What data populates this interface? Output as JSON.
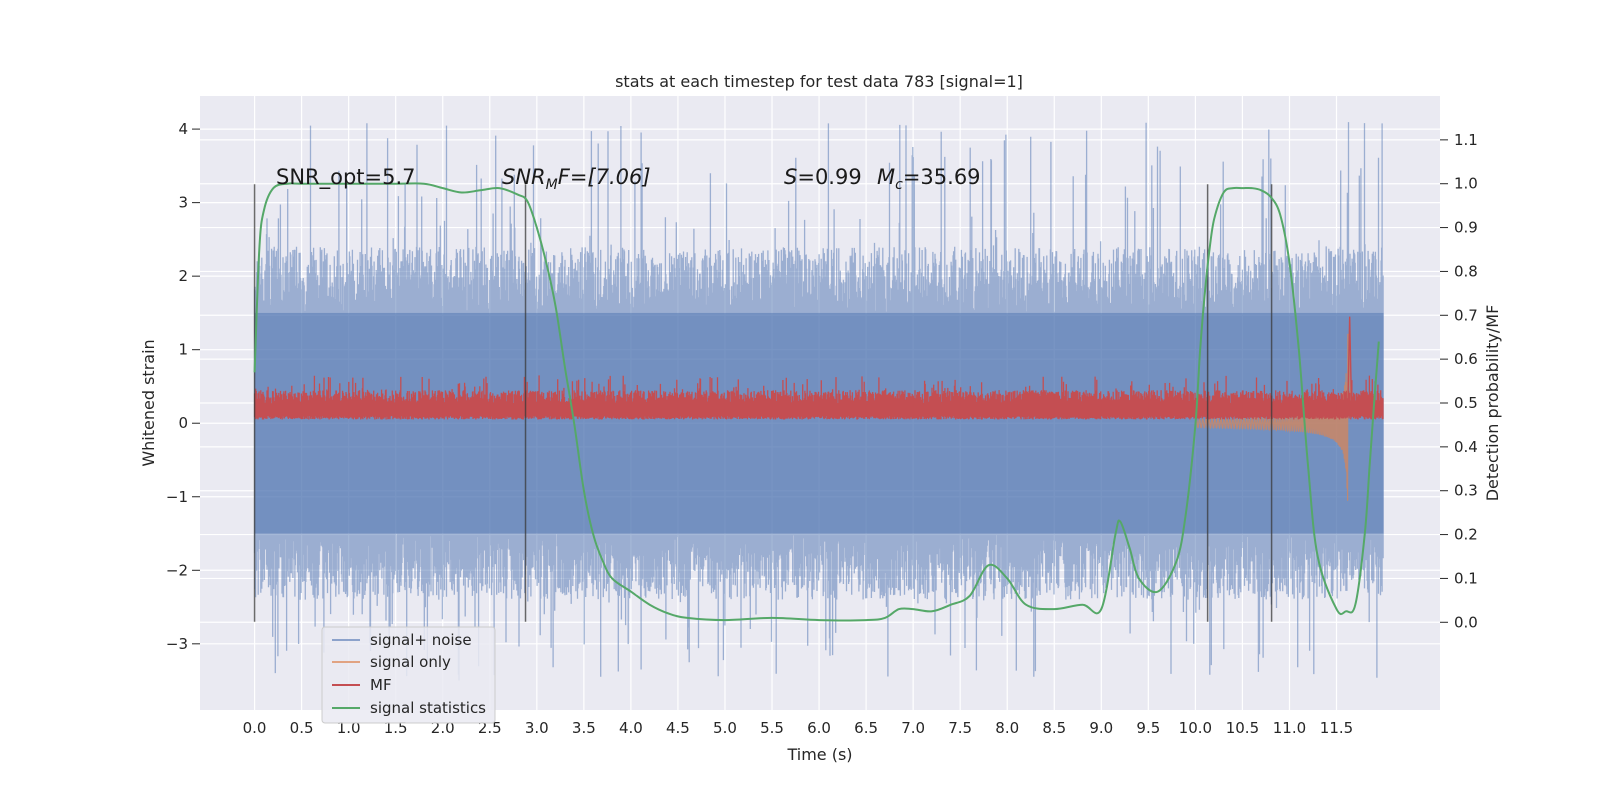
{
  "chart_data": {
    "type": "line",
    "title": "stats at each timestep for test data 783 [signal=1]",
    "xlabel": "Time (s)",
    "ylabel": "Whitened strain",
    "y2label": "Detection probability/MF",
    "xlim": [
      -0.58,
      12.6
    ],
    "ylim": [
      -3.9,
      4.45
    ],
    "y2lim": [
      -0.2,
      1.2
    ],
    "xticks": [
      "0.0",
      "0.5",
      "1.0",
      "1.5",
      "2.0",
      "2.5",
      "3.0",
      "3.5",
      "4.0",
      "4.5",
      "5.0",
      "5.5",
      "6.0",
      "6.5",
      "7.0",
      "7.5",
      "8.0",
      "8.5",
      "9.0",
      "9.5",
      "10.0",
      "10.5",
      "11.0",
      "11.5"
    ],
    "yticks": [
      "−3",
      "−2",
      "−1",
      "0",
      "1",
      "2",
      "3",
      "4"
    ],
    "y2ticks": [
      "0.0",
      "0.1",
      "0.2",
      "0.3",
      "0.4",
      "0.5",
      "0.6",
      "0.7",
      "0.8",
      "0.9",
      "1.0",
      "1.1"
    ],
    "grid": true,
    "legend_position": "lower-left",
    "annotations": {
      "snr_opt": "SNR_opt=5.7",
      "snr_mf_a": "SNR",
      "snr_mf_sub": "M",
      "snr_mf_b": "F=[7.06]",
      "s_sym": "S",
      "s_val": "=0.99",
      "mc_sym": "M",
      "mc_sub": "c",
      "mc_val": "=35.69"
    },
    "vlines_x": [
      0.0,
      2.88,
      10.13,
      10.81
    ],
    "vlines_range": [
      -2.7,
      3.25
    ],
    "series": [
      {
        "name": "signal+ noise",
        "color": "#4c72b0",
        "alpha": 0.5,
        "kind": "noise",
        "x_range": [
          0.0,
          12.0
        ],
        "band": [
          -1.5,
          1.5
        ],
        "peak_range": [
          -3.5,
          4.1
        ]
      },
      {
        "name": "signal only",
        "color": "#dd8452",
        "kind": "chirp",
        "x_range": [
          10.0,
          11.7
        ],
        "peak": [
          11.62,
          1.45,
          -1.35
        ]
      },
      {
        "name": "MF",
        "color": "#c44e52",
        "kind": "mf",
        "x_range": [
          0.0,
          12.0
        ],
        "band": [
          0.05,
          0.45
        ]
      },
      {
        "name": "signal statistics",
        "color": "#55a868",
        "axis": "right",
        "x": [
          0.0,
          0.05,
          0.1,
          0.2,
          0.35,
          0.5,
          1.0,
          1.5,
          1.8,
          2.0,
          2.2,
          2.4,
          2.6,
          2.8,
          2.9,
          3.0,
          3.1,
          3.2,
          3.3,
          3.4,
          3.5,
          3.6,
          3.7,
          3.8,
          4.0,
          4.2,
          4.4,
          4.6,
          5.0,
          5.5,
          6.0,
          6.5,
          6.7,
          6.85,
          7.0,
          7.2,
          7.4,
          7.6,
          7.8,
          8.0,
          8.2,
          8.5,
          8.8,
          9.0,
          9.15,
          9.2,
          9.3,
          9.4,
          9.6,
          9.8,
          9.9,
          10.0,
          10.05,
          10.1,
          10.15,
          10.2,
          10.3,
          10.4,
          10.5,
          10.6,
          10.7,
          10.8,
          10.9,
          11.0,
          11.1,
          11.2,
          11.3,
          11.5,
          11.6,
          11.7,
          11.8,
          11.85,
          11.9,
          11.95
        ],
        "y": [
          0.57,
          0.85,
          0.94,
          0.99,
          1.0,
          1.0,
          1.0,
          1.0,
          1.0,
          0.99,
          0.98,
          0.985,
          0.99,
          0.975,
          0.96,
          0.9,
          0.82,
          0.72,
          0.58,
          0.45,
          0.3,
          0.2,
          0.14,
          0.1,
          0.07,
          0.04,
          0.02,
          0.01,
          0.005,
          0.01,
          0.005,
          0.005,
          0.01,
          0.03,
          0.03,
          0.025,
          0.04,
          0.06,
          0.13,
          0.1,
          0.04,
          0.03,
          0.04,
          0.03,
          0.2,
          0.23,
          0.17,
          0.1,
          0.07,
          0.14,
          0.25,
          0.45,
          0.62,
          0.75,
          0.85,
          0.92,
          0.98,
          0.99,
          0.99,
          0.99,
          0.985,
          0.97,
          0.93,
          0.82,
          0.62,
          0.35,
          0.15,
          0.03,
          0.025,
          0.04,
          0.2,
          0.35,
          0.5,
          0.64
        ]
      }
    ]
  }
}
